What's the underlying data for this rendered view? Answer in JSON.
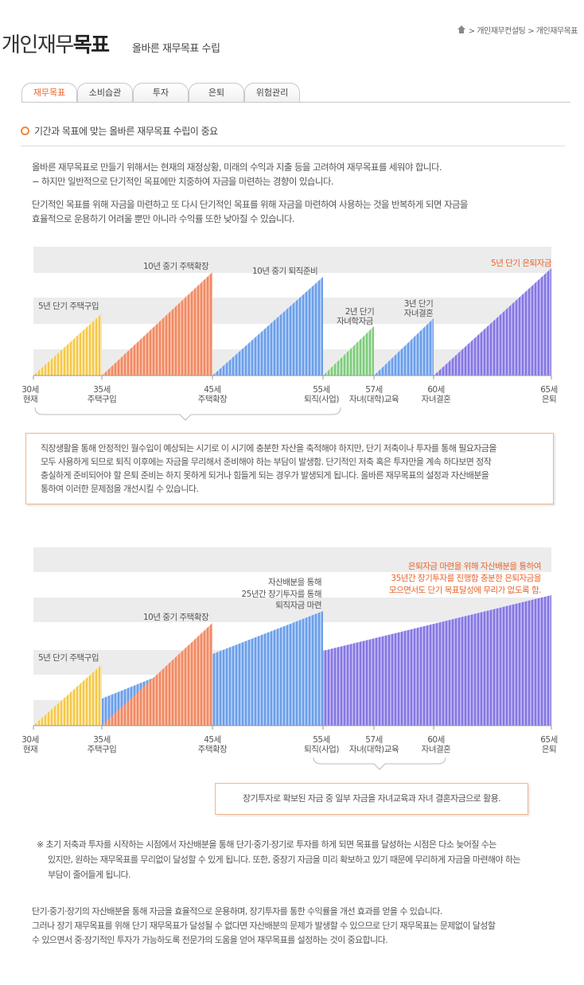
{
  "header": {
    "title_light": "개인재무",
    "title_bold": "목표",
    "subtitle": "올바른 재무목표 수립",
    "breadcrumb": [
      "> 개인재무컨설팅",
      "> 개인재무목표"
    ]
  },
  "tabs": [
    "재무목표",
    "소비습관",
    "투자",
    "은퇴",
    "위험관리"
  ],
  "section_title": "기간과 목표에 맞는 올바른 재무목표 수립이 중요",
  "intro": {
    "p1": "올바른 재무목표로 만들기 위해서는 현재의 재정상황, 미래의 수익과 지출 등을 고려하여 재무목표를 세워야 합니다.",
    "p1b": " − 하지만 일반적으로 단기적인 목표에만 치중하여 자금을 마련하는 경향이 있습니다.",
    "p2": "단기적인 목표를 위해 자금을 마련하고 또 다시 단기적인 목표를 위해 자금을 마련하여 사용하는 것을 반복하게 되면 자금을",
    "p2b": "효율적으로 운용하기 어려울 뿐만 아니라 수익률 또한 낮아질 수 있습니다."
  },
  "axis_ticks": [
    {
      "age": "30세",
      "label": "현재"
    },
    {
      "age": "35세",
      "label": "주택구입"
    },
    {
      "age": "45세",
      "label": "주택확장"
    },
    {
      "age": "55세",
      "label": "퇴직(사업)"
    },
    {
      "age": "57세",
      "label": "자녀(대학)교육"
    },
    {
      "age": "60세",
      "label": "자녀결혼"
    },
    {
      "age": "65세",
      "label": "은퇴"
    }
  ],
  "chart1": {
    "labels": {
      "house5": "5년 단기 주택구입",
      "house10": "10년 중기 주택확장",
      "retire10": "10년 중기  퇴직준비",
      "edu1": "2년 단기",
      "edu2": "자녀학자금",
      "wed1": "3년 단기",
      "wed2": "자녀결혼",
      "retire5": "5년 단기 은퇴자금"
    },
    "note": [
      "직장생활을 통해 안정적인 월수입이 예상되는 시기로 이 시기에 충분한 자산을 축적해야 하지만, 단기 저축이나 투자를 통해 필요자금을",
      "모두 사용하게 되므로 퇴직 이후에는 자금을 무리해서 준비해야 하는 부담이  발생함. 단기적인 저축 혹은 투자만을 계속 하다보면 정작",
      "충실하게 준비되어야 할 은퇴 준비는 하지 못하게 되거나 힘들게 되는 경우가 발생되게 됩니다. 올바른 재무목표의 설정과 자산배분을",
      "통하여 이러한 문제점을 개선시킬 수 있습니다."
    ]
  },
  "chart2": {
    "labels": {
      "house5": "5년 단기 주택구입",
      "house10": "10년 중기 주택확장",
      "alloc1": "자산배분을 통해",
      "alloc2": "25년간 장기투자를 통해",
      "alloc3": "퇴직자금 마련",
      "ret1": "은퇴자금 마련을 위해 자산배분을 통하여",
      "ret2": "35년간 장기투자를 진행함 충분한 은퇴자금을",
      "ret3": "모으면서도 단기 목표달성에 무리가 없도록 함."
    },
    "note": "장기투자로 확보된 자금 중  일부 자금을 자녀교육과 자녀 결혼자금으로 활용."
  },
  "footnote": [
    "※ 초기 저축과 투자를 시작하는 시점에서 자산배분을 통해 단기·중기·장기로 투자를 하게 되면 목표를 달성하는 시점은 다소 늦어질 수는",
    "있지만, 원하는 재무목표를 무리없이 달성할 수 있게 됩니다. 또한, 중장기 자금을 미리 확보하고 있기 때문에 무리하게 자금을 마련해야 하는",
    "부담이 줄어들게 됩니다."
  ],
  "conclusion": [
    "단기·중기·장기의 자산배분을 통해 자금을 효율적으로 운용하며, 장기투자를 통한 수익률을 개선 효과를 얻을 수 있습니다.",
    "그러나 장기 재무목표를 위해 단기 재무목표가 달성될 수 없다면 자산배분의 문제가 발생할 수 있으므로 단기 재무목표는 문제없이 달성할",
    "수 있으면서 중·장기적인 투자가 가능하도록 전문가의 도움을 얻어 재무목표를 설정하는 것이 중요합니다."
  ]
}
